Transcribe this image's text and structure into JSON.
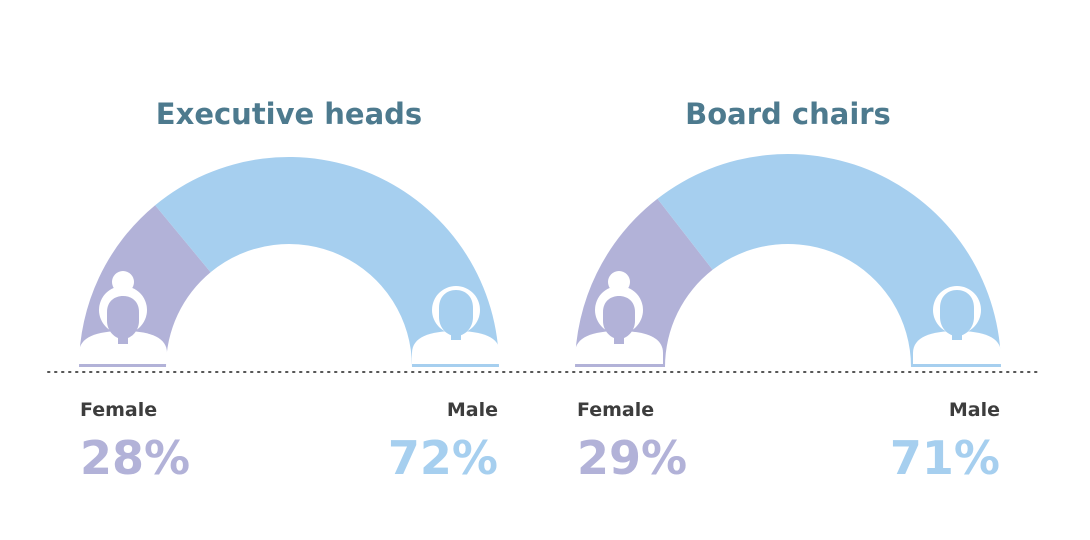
{
  "chart_data": {
    "type": "pie",
    "colors": {
      "female": "#b2b2d8",
      "male": "#a6cfef",
      "icon": "#ffffff",
      "title": "#4d7a8e",
      "label": "#3d3d3d"
    },
    "gauges": [
      {
        "title": "Executive heads",
        "slices": [
          {
            "category": "Female",
            "value": 28,
            "value_label": "28%"
          },
          {
            "category": "Male",
            "value": 72,
            "value_label": "72%"
          }
        ]
      },
      {
        "title": "Board chairs",
        "slices": [
          {
            "category": "Female",
            "value": 29,
            "value_label": "29%"
          },
          {
            "category": "Male",
            "value": 71,
            "value_label": "71%"
          }
        ]
      }
    ],
    "icons": {
      "female": "woman-icon",
      "male": "man-icon"
    }
  }
}
